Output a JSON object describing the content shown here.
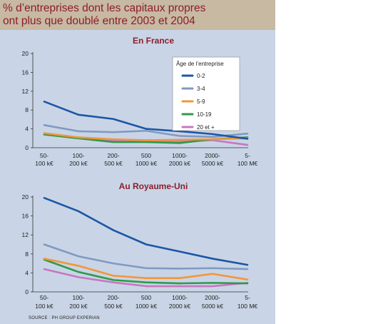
{
  "title": {
    "line1": "% d’entreprises dont les capitaux propres",
    "line2": "ont plus que doublé entre 2003 et 2004"
  },
  "source": "SOURCE : PH GROUP EXPERIAN",
  "colors": {
    "background": "#c9d5e6",
    "title_band": "#c7b9a2",
    "title_text": "#8d1d2a",
    "series": [
      "#1c56a6",
      "#7f9ac2",
      "#f3963a",
      "#2f9a4a",
      "#c777c1"
    ]
  },
  "chart_data": [
    {
      "type": "line",
      "title": "En France",
      "categories": [
        [
          "50-",
          "100 k€"
        ],
        [
          "100-",
          "200 k€"
        ],
        [
          "200-",
          "500 k€"
        ],
        [
          "500",
          "1000 k€"
        ],
        [
          "1000-",
          "2000 k€"
        ],
        [
          "2000-",
          "5000 k€"
        ],
        [
          "5-",
          "100 M€"
        ]
      ],
      "ylim": [
        0,
        20
      ],
      "yticks": [
        0,
        4,
        8,
        12,
        16,
        20
      ],
      "grid": false,
      "legend_title": "Âge de l’entreprise",
      "legend_position": "top-right",
      "series": [
        {
          "name": "0-2",
          "values": [
            9.8,
            7.0,
            6.1,
            4.0,
            3.5,
            2.9,
            1.9
          ]
        },
        {
          "name": "3-4",
          "values": [
            4.8,
            3.5,
            3.3,
            3.6,
            2.5,
            2.3,
            3.0
          ]
        },
        {
          "name": "5-9",
          "values": [
            3.1,
            2.2,
            1.8,
            1.6,
            1.7,
            1.8,
            2.0
          ]
        },
        {
          "name": "10-19",
          "values": [
            2.8,
            2.0,
            1.2,
            1.2,
            1.0,
            1.8,
            2.2
          ]
        },
        {
          "name": "20 et +",
          "values": [
            2.9,
            2.1,
            1.5,
            1.3,
            1.3,
            1.6,
            0.6
          ]
        }
      ]
    },
    {
      "type": "line",
      "title": "Au Royaume-Uni",
      "categories": [
        [
          "50-",
          "100 k€"
        ],
        [
          "100-",
          "200 k€"
        ],
        [
          "200-",
          "500 k€"
        ],
        [
          "500",
          "1000 k€"
        ],
        [
          "1000-",
          "2000 k€"
        ],
        [
          "2000-",
          "5000 k€"
        ],
        [
          "5-",
          "100 M€"
        ]
      ],
      "ylim": [
        0,
        20
      ],
      "yticks": [
        0,
        4,
        8,
        12,
        16,
        20
      ],
      "grid": false,
      "series": [
        {
          "name": "0-2",
          "values": [
            19.8,
            17.0,
            13.0,
            10.0,
            8.5,
            7.0,
            5.7
          ]
        },
        {
          "name": "3-4",
          "values": [
            10.0,
            7.5,
            6.0,
            5.0,
            4.9,
            5.0,
            4.8
          ]
        },
        {
          "name": "5-9",
          "values": [
            7.0,
            5.5,
            3.4,
            2.9,
            2.9,
            3.8,
            2.6
          ]
        },
        {
          "name": "10-19",
          "values": [
            6.8,
            4.2,
            2.5,
            2.0,
            1.8,
            1.9,
            1.8
          ]
        },
        {
          "name": "20 et +",
          "values": [
            4.8,
            3.1,
            2.0,
            1.2,
            1.2,
            1.2,
            1.9
          ]
        }
      ]
    }
  ]
}
